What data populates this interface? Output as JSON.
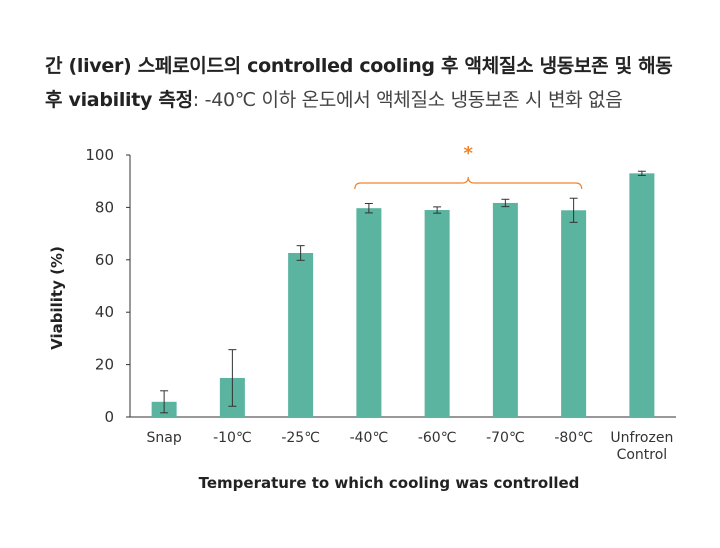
{
  "title": {
    "line1": "간 (liver) 스페로이드의 controlled cooling 후 액체질소 냉동보존 및 해동",
    "line2_bold": "후 viability 측정",
    "line2_sep": ":",
    "line2_rest": " -40℃ 이하 온도에서 액체질소 냉동보존 시 변화 없음"
  },
  "colors": {
    "bar": "#5ab4a0",
    "error": "#333333",
    "axis": "#333333",
    "significance": "#f0832a"
  },
  "chart_data": {
    "type": "bar",
    "title": "간 (liver) 스페로이드의 controlled cooling 후 액체질소 냉동보존 및 해동 후 viability 측정: -40℃ 이하 온도에서 액체질소 냉동보존 시 변화 없음",
    "xlabel": "Temperature to which cooling was controlled",
    "ylabel": "Viability (%)",
    "ylim": [
      0,
      100
    ],
    "yticks": [
      0,
      20,
      40,
      60,
      80,
      100
    ],
    "grid": false,
    "categories": [
      "Snap",
      "-10℃",
      "-25℃",
      "-40℃",
      "-60℃",
      "-70℃",
      "-80℃",
      "Unfrozen Control"
    ],
    "category_lines": [
      [
        "Snap"
      ],
      [
        "-10℃"
      ],
      [
        "-25℃"
      ],
      [
        "-40℃"
      ],
      [
        "-60℃"
      ],
      [
        "-70℃"
      ],
      [
        "-80℃"
      ],
      [
        "Unfrozen",
        "Control"
      ]
    ],
    "values": [
      5.8,
      14.9,
      62.6,
      79.7,
      79.0,
      81.7,
      78.9,
      93.0
    ],
    "errors": [
      4.2,
      10.8,
      2.8,
      1.8,
      1.2,
      1.4,
      4.6,
      0.8
    ],
    "significance": {
      "label": "*",
      "from_category": "-40℃",
      "to_category": "-80℃"
    }
  }
}
